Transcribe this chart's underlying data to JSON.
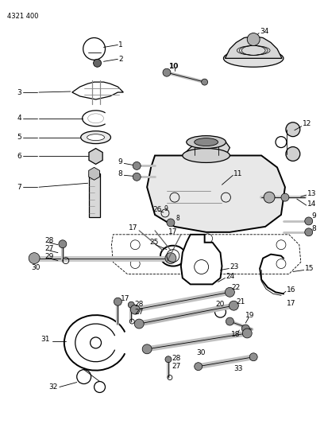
{
  "header_text": "4321 400",
  "bg_color": "#ffffff",
  "line_color": "#000000",
  "fig_width": 4.08,
  "fig_height": 5.33,
  "dpi": 100
}
